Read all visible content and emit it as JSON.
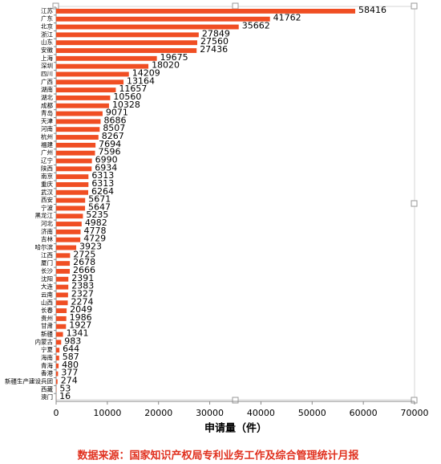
{
  "chart_data": {
    "type": "hbar",
    "categories": [
      "江苏",
      "广东",
      "北京",
      "浙江",
      "山东",
      "安徽",
      "上海",
      "深圳",
      "四川",
      "广西",
      "湖南",
      "湖北",
      "成都",
      "青岛",
      "天津",
      "河南",
      "杭州",
      "福建",
      "广州",
      "辽宁",
      "陕西",
      "南京",
      "重庆",
      "武汉",
      "西安",
      "宁波",
      "黑龙江",
      "河北",
      "济南",
      "吉林",
      "哈尔滨",
      "江西",
      "厦门",
      "长沙",
      "沈阳",
      "大连",
      "云南",
      "山西",
      "长春",
      "贵州",
      "甘肃",
      "新疆",
      "内蒙古",
      "宁夏",
      "海南",
      "青海",
      "香港",
      "新疆生产建设兵团",
      "西藏",
      "澳门"
    ],
    "values": [
      58416,
      41762,
      35662,
      27849,
      27560,
      27436,
      19675,
      18020,
      14209,
      13164,
      11657,
      10560,
      10328,
      9071,
      8686,
      8507,
      8267,
      7694,
      7596,
      6990,
      6934,
      6313,
      6313,
      6264,
      5671,
      5647,
      5235,
      4982,
      4778,
      4729,
      3923,
      2725,
      2678,
      2666,
      2391,
      2383,
      2327,
      2274,
      2049,
      1986,
      1927,
      1341,
      983,
      644,
      587,
      480,
      377,
      274,
      53,
      16
    ],
    "color": "#f04e23",
    "xlim": [
      0,
      70000
    ],
    "xticks": [
      0,
      10000,
      20000,
      30000,
      40000,
      50000,
      60000,
      70000
    ],
    "xlabel": "申请量（件）",
    "source": "数据来源：国家知识产权局专利业务工作及综合管理统计月报"
  }
}
